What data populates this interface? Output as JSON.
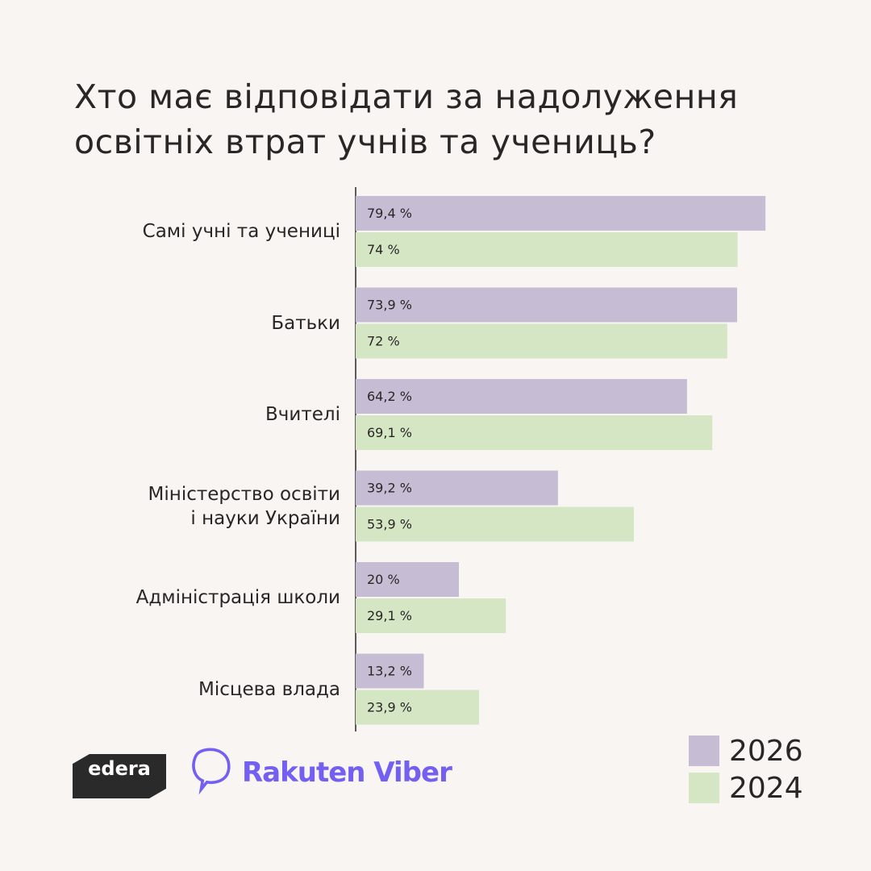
{
  "chart_data": {
    "type": "bar",
    "orientation": "horizontal",
    "title": "Хто має відповідати за надолуження освітніх втрат учнів та учениць?",
    "categories": [
      "Самі учні та учениці",
      "Батьки",
      "Вчителі",
      "Міністерство освіти\nі науки України",
      "Адміністрація школи",
      "Місцева влада"
    ],
    "series": [
      {
        "name": "2026",
        "color": "#c6bdd5",
        "values": [
          79.4,
          73.9,
          64.2,
          39.2,
          20,
          13.2
        ],
        "value_labels": [
          "79,4 %",
          "73,9 %",
          "64,2 %",
          "39,2 %",
          "20 %",
          "13,2 %"
        ]
      },
      {
        "name": "2024",
        "color": "#d5e6c4",
        "values": [
          74,
          72,
          69.1,
          53.9,
          29.1,
          23.9
        ],
        "value_labels": [
          "74 %",
          "72 %",
          "69,1 %",
          "53,9 %",
          "29,1 %",
          "23,9 %"
        ]
      }
    ],
    "xlim": [
      0,
      80
    ],
    "legend": "bottom-right"
  },
  "logos": [
    "edera",
    "Rakuten Viber"
  ]
}
